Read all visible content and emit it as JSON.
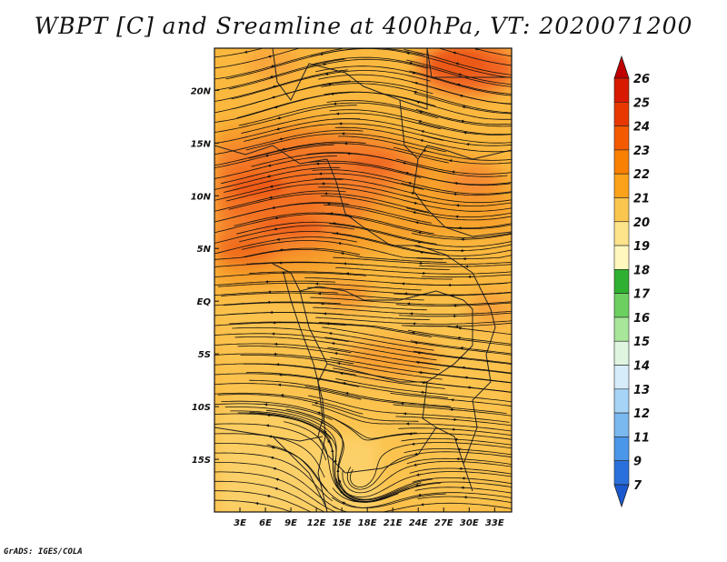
{
  "title": "WBPT [C] and Sreamline at 400hPa, VT: 2020071200",
  "footer": "GrADS: IGES/COLA",
  "map": {
    "variable": "WBPT [C]",
    "level": "400hPa",
    "valid_time": "2020071200",
    "lon_ticks": [
      "3E",
      "6E",
      "9E",
      "12E",
      "15E",
      "18E",
      "21E",
      "24E",
      "27E",
      "30E",
      "33E"
    ],
    "lat_ticks": [
      "20N",
      "15N",
      "10N",
      "5N",
      "EQ",
      "5S",
      "10S",
      "15S"
    ],
    "lon_range": [
      0,
      35
    ],
    "lat_range": [
      -20,
      24
    ]
  },
  "colorbar": {
    "levels": [
      "26",
      "25",
      "24",
      "23",
      "22",
      "21",
      "20",
      "19",
      "18",
      "17",
      "16",
      "15",
      "14",
      "13",
      "12",
      "11",
      "9",
      "7"
    ],
    "colors": [
      "#c00000",
      "#d81a00",
      "#e83800",
      "#f45a00",
      "#f98000",
      "#fba21a",
      "#fbc650",
      "#fde38a",
      "#fff7bd",
      "#30b030",
      "#6cd060",
      "#a8e69a",
      "#dff5e0",
      "#d6ecfb",
      "#a6d4f6",
      "#7ab8f0",
      "#4a96e8",
      "#2a70dc",
      "#1a58d0"
    ]
  }
}
